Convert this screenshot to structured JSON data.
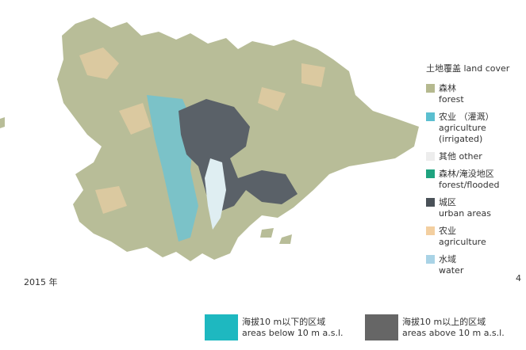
{
  "legend": {
    "title": "土地覆盖 land cover",
    "items": [
      {
        "lines": [
          "森林",
          "forest"
        ],
        "color": "#b5b98f"
      },
      {
        "lines": [
          "农业 （灌溉）",
          "agriculture",
          "(irrigated)"
        ],
        "color": "#5bbfd0"
      },
      {
        "lines": [
          "其他 other"
        ],
        "color": "#ededed"
      },
      {
        "lines": [
          "森林/淹没地区",
          "forest/flooded"
        ],
        "color": "#1fa37f"
      },
      {
        "lines": [
          "城区",
          "urban areas"
        ],
        "color": "#4a5158"
      },
      {
        "lines": [
          "农业",
          "agriculture"
        ],
        "color": "#f3cfa0"
      },
      {
        "lines": [
          "水域",
          "water"
        ],
        "color": "#a9d3e6"
      }
    ]
  },
  "year": "2015 年",
  "page_number": "4",
  "elevation_key": [
    {
      "lines": [
        "海拔10 m以下的区域",
        "areas below 10 m a.s.l."
      ],
      "color": "#1eb8c0"
    },
    {
      "lines": [
        "海拔10 m以上的区域",
        "areas above 10 m a.s.l."
      ],
      "color": "#666666"
    }
  ]
}
